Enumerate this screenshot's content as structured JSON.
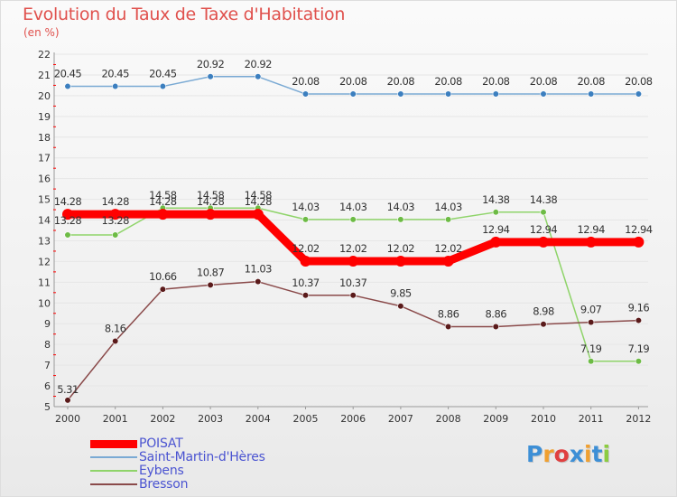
{
  "title": "Evolution du Taux de Taxe d'Habitation",
  "subtitle": "(en %)",
  "colors": {
    "title": "#e0514d",
    "legend_text": "#4b54d1",
    "axis": "#999999",
    "tick_red": "#ff0000"
  },
  "chart_data": {
    "type": "line",
    "title": "Evolution du Taux de Taxe d'Habitation",
    "ylabel": "(en %)",
    "xlabel": "",
    "ylim": [
      5,
      22
    ],
    "yticks": [
      "5",
      "6",
      "7",
      "8",
      "9",
      "10",
      "11",
      "12",
      "13",
      "14",
      "15",
      "16",
      "17",
      "18",
      "19",
      "20",
      "21",
      "22"
    ],
    "categories": [
      "2000",
      "2001",
      "2002",
      "2003",
      "2004",
      "2005",
      "2006",
      "2007",
      "2008",
      "2009",
      "2010",
      "2011",
      "2012"
    ],
    "legend_position": "bottom-left",
    "series": [
      {
        "name": "POISAT",
        "color": "#ff0000",
        "marker_color": "#ff0000",
        "thick": true,
        "values": [
          14.28,
          14.28,
          14.28,
          14.28,
          14.28,
          12.02,
          12.02,
          12.02,
          12.02,
          12.94,
          12.94,
          12.94,
          12.94
        ],
        "labels": [
          "14.28",
          "14.28",
          "14.28",
          "14.28",
          "14.28",
          "12.02",
          "12.02",
          "12.02",
          "12.02",
          "12.94",
          "12.94",
          "12.94",
          "12.94"
        ]
      },
      {
        "name": "Saint-Martin-d'Hères",
        "color": "#7aaad4",
        "marker_color": "#3c7fbf",
        "thick": false,
        "values": [
          20.45,
          20.45,
          20.45,
          20.92,
          20.92,
          20.08,
          20.08,
          20.08,
          20.08,
          20.08,
          20.08,
          20.08,
          20.08
        ],
        "labels": [
          "20.45",
          "20.45",
          "20.45",
          "20.92",
          "20.92",
          "20.08",
          "20.08",
          "20.08",
          "20.08",
          "20.08",
          "20.08",
          "20.08",
          "20.08"
        ]
      },
      {
        "name": "Eybens",
        "color": "#8fd46a",
        "marker_color": "#6dbb45",
        "thick": false,
        "values": [
          13.28,
          13.28,
          14.58,
          14.58,
          14.58,
          14.03,
          14.03,
          14.03,
          14.03,
          14.38,
          14.38,
          7.19,
          7.19
        ],
        "labels": [
          "13.28",
          "13.28",
          "14.58",
          "14.58",
          "14.58",
          "14.03",
          "14.03",
          "14.03",
          "14.03",
          "14.38",
          "14.38",
          "7.19",
          "7.19"
        ]
      },
      {
        "name": "Bresson",
        "color": "#8a4a4a",
        "marker_color": "#5a1a1a",
        "thick": false,
        "values": [
          5.31,
          8.16,
          10.66,
          10.87,
          11.03,
          10.37,
          10.37,
          9.85,
          8.86,
          8.86,
          8.98,
          9.07,
          9.16
        ],
        "labels": [
          "5.31",
          "8.16",
          "10.66",
          "10.87",
          "11.03",
          "10.37",
          "10.37",
          "9.85",
          "8.86",
          "8.86",
          "8.98",
          "9.07",
          "9.16"
        ]
      }
    ]
  },
  "logo": {
    "letters": [
      "P",
      "r",
      "o",
      "x",
      "i",
      "t",
      "i"
    ],
    "colors": [
      "#3d8fd6",
      "#f0a030",
      "#e04040",
      "#3d8fd6",
      "#f0a030",
      "#3d8fd6",
      "#8ccc40"
    ]
  }
}
